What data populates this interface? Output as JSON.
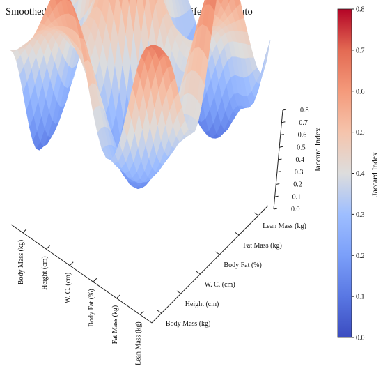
{
  "chart_data": {
    "type": "surface",
    "title": "Smoothed Jaccard Index surface between Recife and Maputo",
    "zlabel": "Jaccard Index",
    "x_categories": [
      "Body Mass (kg)",
      "Height (cm)",
      "W. C. (cm)",
      "Body Fat (%)",
      "Fat Mass (kg)",
      "Lean Mass (kg)"
    ],
    "y_categories": [
      "Body Mass (kg)",
      "Height (cm)",
      "W. C. (cm)",
      "Body Fat (%)",
      "Fat Mass (kg)",
      "Lean Mass (kg)"
    ],
    "z_ticks": [
      "0.0",
      "0.1",
      "0.2",
      "0.3",
      "0.4",
      "0.5",
      "0.6",
      "0.7",
      "0.8"
    ],
    "zlim": [
      0,
      0.8
    ],
    "colormap": "coolwarm",
    "colorbar": {
      "label": "Jaccard Index",
      "ticks": [
        "0.0",
        "0.1",
        "0.2",
        "0.3",
        "0.4",
        "0.5",
        "0.6",
        "0.7",
        "0.8"
      ],
      "range": [
        0,
        0.8
      ]
    },
    "colors": {
      "low": "#3b4cc0",
      "mid": "#dddddd",
      "high": "#b40426"
    }
  }
}
